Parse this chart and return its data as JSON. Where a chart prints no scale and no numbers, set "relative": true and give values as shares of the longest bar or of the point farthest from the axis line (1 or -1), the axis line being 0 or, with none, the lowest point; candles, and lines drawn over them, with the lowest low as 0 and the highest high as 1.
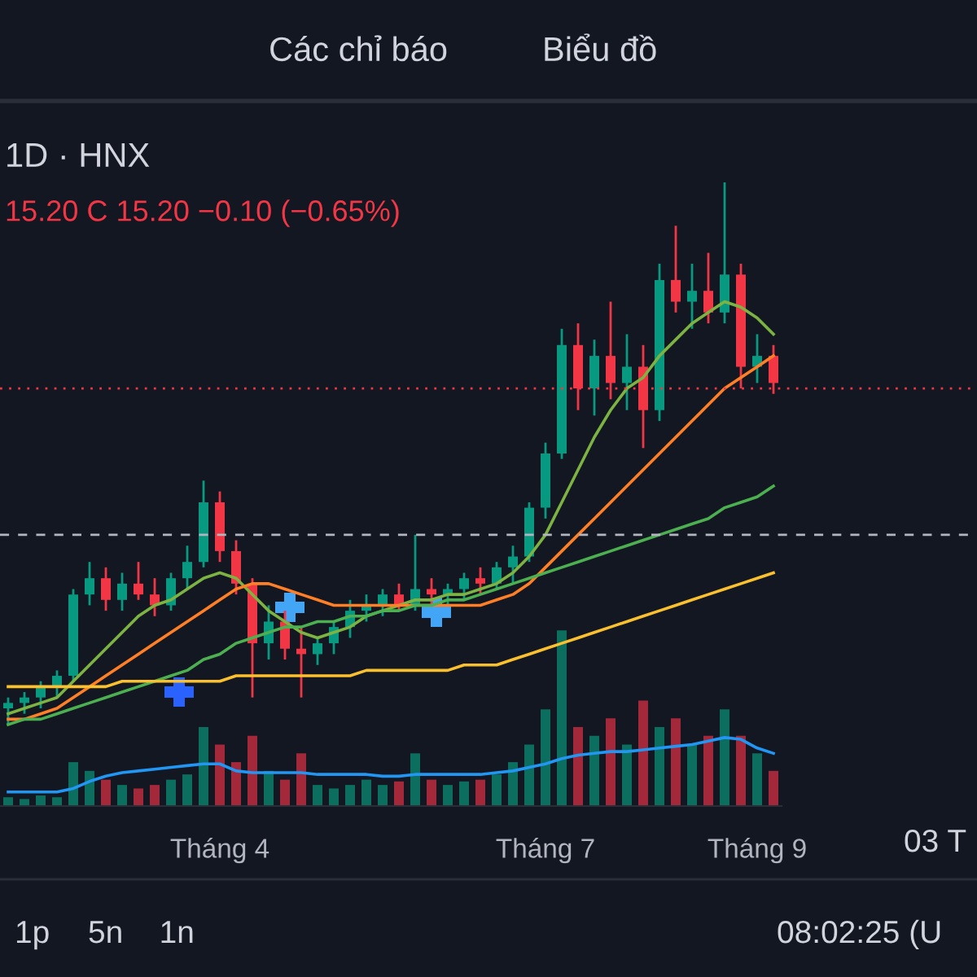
{
  "chart_data": [
    {
      "type": "candlestick",
      "title": "1D · HNX",
      "subtitle": "15.20 C 15.20 −0.10 (−0.65%)",
      "relative": true,
      "categories": [
        null,
        null,
        null,
        null,
        null,
        null,
        null,
        null,
        null,
        null,
        null,
        null,
        null,
        null,
        null,
        null,
        null,
        null,
        null,
        null,
        null,
        null,
        null,
        null,
        null,
        null,
        null,
        null,
        null,
        null,
        null,
        null,
        null,
        null,
        null,
        null,
        null,
        null,
        null,
        null,
        null,
        null,
        null,
        null,
        null,
        null,
        null,
        null
      ],
      "ohlc": [
        [
          0.03,
          0.05,
          0.0,
          0.04
        ],
        [
          0.04,
          0.06,
          0.02,
          0.05
        ],
        [
          0.05,
          0.08,
          0.03,
          0.07
        ],
        [
          0.07,
          0.1,
          0.05,
          0.09
        ],
        [
          0.09,
          0.25,
          0.08,
          0.24
        ],
        [
          0.24,
          0.3,
          0.22,
          0.27
        ],
        [
          0.27,
          0.29,
          0.21,
          0.23
        ],
        [
          0.23,
          0.28,
          0.21,
          0.26
        ],
        [
          0.26,
          0.3,
          0.23,
          0.24
        ],
        [
          0.24,
          0.27,
          0.2,
          0.22
        ],
        [
          0.22,
          0.28,
          0.21,
          0.27
        ],
        [
          0.27,
          0.33,
          0.25,
          0.3
        ],
        [
          0.3,
          0.45,
          0.29,
          0.41
        ],
        [
          0.41,
          0.43,
          0.3,
          0.32
        ],
        [
          0.32,
          0.34,
          0.24,
          0.26
        ],
        [
          0.26,
          0.27,
          0.05,
          0.15
        ],
        [
          0.15,
          0.22,
          0.12,
          0.19
        ],
        [
          0.19,
          0.21,
          0.12,
          0.14
        ],
        [
          0.14,
          0.18,
          0.05,
          0.13
        ],
        [
          0.13,
          0.16,
          0.11,
          0.15
        ],
        [
          0.15,
          0.19,
          0.13,
          0.18
        ],
        [
          0.18,
          0.23,
          0.16,
          0.21
        ],
        [
          0.21,
          0.24,
          0.19,
          0.22
        ],
        [
          0.22,
          0.25,
          0.2,
          0.24
        ],
        [
          0.24,
          0.26,
          0.21,
          0.22
        ],
        [
          0.22,
          0.35,
          0.21,
          0.25
        ],
        [
          0.25,
          0.27,
          0.22,
          0.24
        ],
        [
          0.24,
          0.26,
          0.22,
          0.25
        ],
        [
          0.25,
          0.28,
          0.23,
          0.27
        ],
        [
          0.27,
          0.29,
          0.24,
          0.26
        ],
        [
          0.26,
          0.3,
          0.25,
          0.29
        ],
        [
          0.29,
          0.33,
          0.26,
          0.31
        ],
        [
          0.31,
          0.41,
          0.3,
          0.4
        ],
        [
          0.4,
          0.52,
          0.38,
          0.5
        ],
        [
          0.5,
          0.73,
          0.49,
          0.7
        ],
        [
          0.7,
          0.74,
          0.58,
          0.62
        ],
        [
          0.62,
          0.71,
          0.57,
          0.68
        ],
        [
          0.68,
          0.78,
          0.6,
          0.63
        ],
        [
          0.63,
          0.72,
          0.58,
          0.66
        ],
        [
          0.66,
          0.7,
          0.51,
          0.58
        ],
        [
          0.58,
          0.85,
          0.56,
          0.82
        ],
        [
          0.82,
          0.92,
          0.76,
          0.78
        ],
        [
          0.78,
          0.85,
          0.73,
          0.8
        ],
        [
          0.8,
          0.87,
          0.74,
          0.76
        ],
        [
          0.76,
          1.0,
          0.74,
          0.83
        ],
        [
          0.83,
          0.85,
          0.62,
          0.66
        ],
        [
          0.66,
          0.72,
          0.63,
          0.68
        ],
        [
          0.68,
          0.7,
          0.61,
          0.63
        ]
      ],
      "series": [
        {
          "type": "line",
          "color": "#7cb342",
          "values": [
            0.02,
            0.03,
            0.04,
            0.05,
            0.08,
            0.11,
            0.14,
            0.17,
            0.2,
            0.22,
            0.23,
            0.25,
            0.27,
            0.28,
            0.27,
            0.24,
            0.21,
            0.19,
            0.17,
            0.16,
            0.17,
            0.18,
            0.2,
            0.21,
            0.22,
            0.23,
            0.23,
            0.24,
            0.24,
            0.25,
            0.26,
            0.28,
            0.31,
            0.35,
            0.41,
            0.47,
            0.53,
            0.58,
            0.62,
            0.64,
            0.68,
            0.71,
            0.74,
            0.76,
            0.78,
            0.77,
            0.75,
            0.72
          ]
        },
        {
          "type": "line",
          "color": "#ff7f27",
          "values": [
            0.01,
            0.01,
            0.02,
            0.03,
            0.05,
            0.07,
            0.09,
            0.11,
            0.13,
            0.15,
            0.17,
            0.19,
            0.21,
            0.23,
            0.25,
            0.26,
            0.26,
            0.25,
            0.24,
            0.23,
            0.22,
            0.22,
            0.22,
            0.22,
            0.22,
            0.22,
            0.22,
            0.22,
            0.22,
            0.22,
            0.23,
            0.24,
            0.26,
            0.29,
            0.32,
            0.35,
            0.38,
            0.41,
            0.44,
            0.47,
            0.5,
            0.53,
            0.56,
            0.59,
            0.62,
            0.64,
            0.66,
            0.68
          ]
        },
        {
          "type": "line",
          "color": "#4caf50",
          "values": [
            0.0,
            0.01,
            0.01,
            0.02,
            0.03,
            0.04,
            0.05,
            0.06,
            0.07,
            0.08,
            0.09,
            0.1,
            0.12,
            0.13,
            0.15,
            0.16,
            0.17,
            0.18,
            0.18,
            0.19,
            0.19,
            0.2,
            0.2,
            0.21,
            0.21,
            0.22,
            0.22,
            0.23,
            0.23,
            0.24,
            0.25,
            0.26,
            0.27,
            0.28,
            0.29,
            0.3,
            0.31,
            0.32,
            0.33,
            0.34,
            0.35,
            0.36,
            0.37,
            0.38,
            0.4,
            0.41,
            0.42,
            0.44
          ]
        },
        {
          "type": "line",
          "color": "#fbc02d",
          "values": [
            0.07,
            0.07,
            0.07,
            0.07,
            0.07,
            0.07,
            0.07,
            0.08,
            0.08,
            0.08,
            0.08,
            0.08,
            0.08,
            0.08,
            0.09,
            0.09,
            0.09,
            0.09,
            0.09,
            0.09,
            0.09,
            0.09,
            0.1,
            0.1,
            0.1,
            0.1,
            0.1,
            0.1,
            0.11,
            0.11,
            0.11,
            0.12,
            0.13,
            0.14,
            0.15,
            0.16,
            0.17,
            0.18,
            0.19,
            0.2,
            0.21,
            0.22,
            0.23,
            0.24,
            0.25,
            0.26,
            0.27,
            0.28
          ]
        }
      ],
      "ref_lines": [
        {
          "axis": "y",
          "value": 0.35,
          "color": "#b2b5be",
          "line_style": "dashed"
        },
        {
          "axis": "y",
          "value": 0.62,
          "color": "#f23645",
          "line_style": "dotted"
        }
      ],
      "annotations": [
        "Các chỉ báo",
        "Biểu đồ",
        "1p",
        "5n",
        "1n",
        "08:02:25 (U",
        "03 T"
      ]
    },
    {
      "type": "bar",
      "relative": true,
      "categories": [
        null,
        null,
        null,
        null,
        null,
        null,
        null,
        null,
        null,
        null,
        null,
        null,
        null,
        "Tháng 4",
        null,
        null,
        null,
        null,
        null,
        null,
        null,
        null,
        null,
        null,
        null,
        null,
        null,
        null,
        null,
        null,
        null,
        null,
        null,
        "Tháng 7",
        null,
        null,
        null,
        null,
        null,
        null,
        null,
        null,
        null,
        null,
        null,
        null,
        "Tháng 9",
        null
      ],
      "series": [
        {
          "type": "bar",
          "colors": [
            "#0b6e5e",
            "#0b6e5e",
            "#0b6e5e",
            "#0b6e5e",
            "#0b6e5e",
            "#0b6e5e",
            "#a3283a",
            "#0b6e5e",
            "#a3283a",
            "#a3283a",
            "#0b6e5e",
            "#0b6e5e",
            "#0b6e5e",
            "#a3283a",
            "#a3283a",
            "#a3283a",
            "#0b6e5e",
            "#a3283a",
            "#a3283a",
            "#0b6e5e",
            "#0b6e5e",
            "#0b6e5e",
            "#0b6e5e",
            "#0b6e5e",
            "#a3283a",
            "#0b6e5e",
            "#a3283a",
            "#0b6e5e",
            "#0b6e5e",
            "#a3283a",
            "#0b6e5e",
            "#0b6e5e",
            "#0b6e5e",
            "#0b6e5e",
            "#0b6e5e",
            "#a3283a",
            "#0b6e5e",
            "#a3283a",
            "#0b6e5e",
            "#a3283a",
            "#0b6e5e",
            "#a3283a",
            "#0b6e5e",
            "#a3283a",
            "#0b6e5e",
            "#a3283a",
            "#0b6e5e",
            "#a3283a"
          ],
          "values": [
            0.05,
            0.04,
            0.06,
            0.05,
            0.25,
            0.2,
            0.15,
            0.12,
            0.1,
            0.12,
            0.15,
            0.18,
            0.45,
            0.35,
            0.25,
            0.4,
            0.2,
            0.15,
            0.3,
            0.12,
            0.1,
            0.12,
            0.15,
            0.12,
            0.14,
            0.3,
            0.15,
            0.12,
            0.14,
            0.15,
            0.18,
            0.25,
            0.35,
            0.55,
            1.0,
            0.45,
            0.4,
            0.5,
            0.35,
            0.6,
            0.45,
            0.5,
            0.35,
            0.4,
            0.55,
            0.4,
            0.3,
            0.2
          ]
        },
        {
          "type": "line",
          "color": "#2196f3",
          "values": [
            0.08,
            0.08,
            0.08,
            0.08,
            0.1,
            0.14,
            0.17,
            0.19,
            0.2,
            0.21,
            0.22,
            0.23,
            0.24,
            0.24,
            0.2,
            0.19,
            0.19,
            0.19,
            0.19,
            0.18,
            0.18,
            0.18,
            0.18,
            0.17,
            0.17,
            0.18,
            0.18,
            0.18,
            0.18,
            0.18,
            0.19,
            0.2,
            0.22,
            0.24,
            0.27,
            0.29,
            0.3,
            0.31,
            0.31,
            0.32,
            0.33,
            0.34,
            0.35,
            0.37,
            0.39,
            0.38,
            0.33,
            0.3
          ]
        }
      ]
    }
  ]
}
